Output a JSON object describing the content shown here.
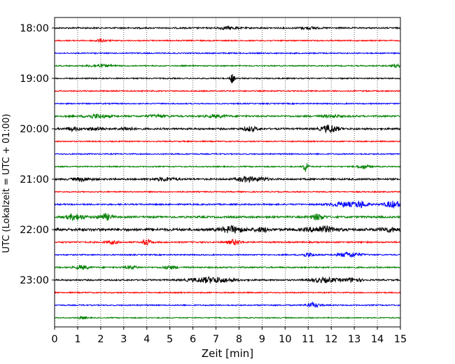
{
  "chart_data": {
    "type": "line",
    "xlabel": "Zeit  [min]",
    "ylabel": "UTC (Lokalzeit = UTC + 01:00)",
    "xlim": [
      0,
      15
    ],
    "x_ticks": [
      "0",
      "1",
      "2",
      "3",
      "4",
      "5",
      "6",
      "7",
      "8",
      "9",
      "10",
      "11",
      "12",
      "13",
      "14",
      "15"
    ],
    "y_tick_labels": [
      "18:00",
      "19:00",
      "20:00",
      "21:00",
      "22:00",
      "23:00"
    ],
    "grid": "vertical dotted",
    "trace_interval_min": 15,
    "colors": [
      "#000000",
      "#ff0000",
      "#0000ff",
      "#008000"
    ],
    "traces": [
      {
        "start": "18:00",
        "color": "#000000",
        "base": 1.0,
        "events": [
          [
            7.5,
            1.8,
            0.4
          ],
          [
            11.0,
            1.4,
            0.4
          ]
        ]
      },
      {
        "start": "18:15",
        "color": "#ff0000",
        "base": 0.8,
        "events": [
          [
            2.0,
            1.5,
            0.3
          ]
        ]
      },
      {
        "start": "18:30",
        "color": "#0000ff",
        "base": 0.8,
        "events": []
      },
      {
        "start": "18:45",
        "color": "#008000",
        "base": 0.8,
        "events": [
          [
            2.0,
            1.8,
            0.5
          ],
          [
            14.8,
            1.6,
            0.3
          ]
        ]
      },
      {
        "start": "19:00",
        "color": "#000000",
        "base": 0.8,
        "events": [
          [
            7.7,
            7,
            0.1
          ]
        ]
      },
      {
        "start": "19:15",
        "color": "#ff0000",
        "base": 0.8,
        "events": []
      },
      {
        "start": "19:30",
        "color": "#0000ff",
        "base": 0.8,
        "events": []
      },
      {
        "start": "19:45",
        "color": "#008000",
        "base": 1.2,
        "events": [
          [
            1.8,
            2.5,
            0.5
          ],
          [
            4.5,
            1.6,
            0.4
          ],
          [
            7.0,
            1.5,
            0.5
          ],
          [
            12.0,
            1.6,
            0.4
          ]
        ]
      },
      {
        "start": "20:00",
        "color": "#000000",
        "base": 1.2,
        "events": [
          [
            0.8,
            2.5,
            0.3
          ],
          [
            1.8,
            2.2,
            0.3
          ],
          [
            3.1,
            2.2,
            0.3
          ],
          [
            8.5,
            3,
            0.3
          ],
          [
            11.9,
            3,
            0.4
          ],
          [
            12.0,
            2.5,
            0.3
          ]
        ]
      },
      {
        "start": "20:15",
        "color": "#ff0000",
        "base": 0.8,
        "events": []
      },
      {
        "start": "20:30",
        "color": "#0000ff",
        "base": 0.8,
        "events": []
      },
      {
        "start": "20:45",
        "color": "#008000",
        "base": 0.8,
        "events": [
          [
            10.9,
            8,
            0.1
          ],
          [
            13.4,
            2.5,
            0.3
          ]
        ]
      },
      {
        "start": "21:00",
        "color": "#000000",
        "base": 1.2,
        "events": [
          [
            1.2,
            2.2,
            0.4
          ],
          [
            4.8,
            2,
            0.5
          ],
          [
            8.3,
            3.5,
            0.4
          ],
          [
            9.0,
            2,
            0.3
          ]
        ]
      },
      {
        "start": "21:15",
        "color": "#ff0000",
        "base": 0.8,
        "events": []
      },
      {
        "start": "21:30",
        "color": "#0000ff",
        "base": 1.0,
        "events": [
          [
            12.5,
            3,
            0.6
          ],
          [
            13.3,
            4,
            0.3
          ],
          [
            14.7,
            4.5,
            0.4
          ]
        ]
      },
      {
        "start": "21:45",
        "color": "#008000",
        "base": 1.3,
        "events": [
          [
            0.9,
            4,
            0.4
          ],
          [
            2.2,
            4,
            0.3
          ],
          [
            11.4,
            4,
            0.3
          ]
        ]
      },
      {
        "start": "22:00",
        "color": "#000000",
        "base": 1.8,
        "events": [
          [
            7.7,
            4,
            0.5
          ],
          [
            9.0,
            2.5,
            0.3
          ],
          [
            11.6,
            4,
            0.6
          ],
          [
            14.5,
            2.5,
            0.4
          ]
        ]
      },
      {
        "start": "22:15",
        "color": "#ff0000",
        "base": 1.0,
        "events": [
          [
            4.0,
            4,
            0.2
          ],
          [
            7.8,
            3.5,
            0.3
          ],
          [
            2.5,
            2,
            0.3
          ]
        ]
      },
      {
        "start": "22:30",
        "color": "#0000ff",
        "base": 0.8,
        "events": [
          [
            11.0,
            2.5,
            0.3
          ],
          [
            12.8,
            3.5,
            0.5
          ]
        ]
      },
      {
        "start": "22:45",
        "color": "#008000",
        "base": 1.0,
        "events": [
          [
            1.2,
            2.5,
            0.3
          ],
          [
            3.3,
            2,
            0.3
          ],
          [
            5.0,
            2,
            0.3
          ]
        ]
      },
      {
        "start": "23:00",
        "color": "#000000",
        "base": 1.0,
        "events": [
          [
            6.8,
            4,
            0.9
          ],
          [
            11.7,
            3,
            0.6
          ],
          [
            12.9,
            2.5,
            0.4
          ]
        ]
      },
      {
        "start": "23:15",
        "color": "#ff0000",
        "base": 0.8,
        "events": []
      },
      {
        "start": "23:30",
        "color": "#0000ff",
        "base": 0.8,
        "events": [
          [
            11.2,
            3,
            0.3
          ]
        ]
      },
      {
        "start": "23:45",
        "color": "#008000",
        "base": 0.7,
        "events": [
          [
            1.2,
            1.8,
            0.2
          ]
        ]
      }
    ]
  }
}
